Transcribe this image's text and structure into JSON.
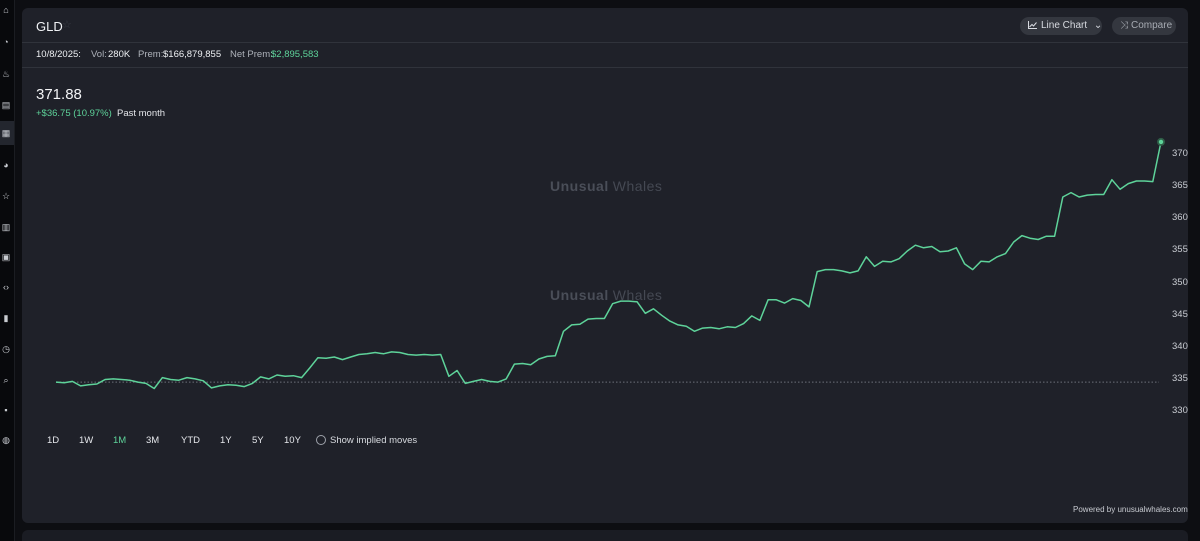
{
  "header": {
    "ticker": "GLD",
    "chart_type_label": "Line Chart",
    "compare_label": "Compare"
  },
  "stats": {
    "date": "10/8/2025:",
    "vol_label": "Vol:",
    "vol_value": "280K",
    "prem_label": "Prem:",
    "prem_value": "$166,879,855",
    "net_prem_label": "Net Prem:",
    "net_prem_value": "$2,895,583"
  },
  "quote": {
    "price": "371.88",
    "change": "+$36.75 (10.97%)",
    "period": "Past month"
  },
  "watermark": {
    "word1": "Unusual",
    "word2": "Whales"
  },
  "ranges": [
    {
      "label": "1D",
      "active": false
    },
    {
      "label": "1W",
      "active": false
    },
    {
      "label": "1M",
      "active": true
    },
    {
      "label": "3M",
      "active": false
    },
    {
      "label": "YTD",
      "active": false
    },
    {
      "label": "1Y",
      "active": false
    },
    {
      "label": "5Y",
      "active": false
    },
    {
      "label": "10Y",
      "active": false
    }
  ],
  "implied_moves_label": "Show implied moves",
  "footer": {
    "powered_by": "Powered by unusualwhales.com"
  },
  "colors": {
    "line": "#5ed39a",
    "background": "#1f2129",
    "baseline": "#6c707a"
  },
  "icons": [
    "home-icon",
    "chart-icon",
    "flame-icon",
    "calendar-icon",
    "grid-icon",
    "pie-icon",
    "star-icon",
    "bar-icon",
    "plus-icon",
    "code-icon",
    "book-icon",
    "clock-icon",
    "search-icon",
    "flag-icon",
    "alert-icon"
  ],
  "chart_data": {
    "type": "line",
    "ylim": [
      328,
      373
    ],
    "yticks": [
      330,
      335,
      340,
      345,
      350,
      355,
      360,
      365,
      370
    ],
    "baseline": 334.5,
    "grid": false,
    "series": [
      {
        "values": [
          334.5,
          334.4,
          334.6,
          333.9,
          334.1,
          334.2,
          334.9,
          335.0,
          334.9,
          334.8,
          334.5,
          334.3,
          333.5,
          335.2,
          334.9,
          334.8,
          335.2,
          335.0,
          334.7,
          333.6,
          333.9,
          334.1,
          334.0,
          333.8,
          334.3,
          335.3,
          335.0,
          335.6,
          335.4,
          335.5,
          335.2,
          336.7,
          338.3,
          338.2,
          338.4,
          338.0,
          338.4,
          338.8,
          338.9,
          339.1,
          338.9,
          339.2,
          339.1,
          338.8,
          338.7,
          338.8,
          338.7,
          338.8,
          335.4,
          336.3,
          334.3,
          334.6,
          334.9,
          334.6,
          334.5,
          335.0,
          337.3,
          337.4,
          337.2,
          338.1,
          338.5,
          338.6,
          342.4,
          343.4,
          343.5,
          344.3,
          344.4,
          344.4,
          346.7,
          347.1,
          347.1,
          347.0,
          345.2,
          345.9,
          344.9,
          344.0,
          343.4,
          343.2,
          342.4,
          342.9,
          343.0,
          342.8,
          343.1,
          343.0,
          343.6,
          344.8,
          344.1,
          347.3,
          347.3,
          346.8,
          347.5,
          347.2,
          346.2,
          351.7,
          352.0,
          352.0,
          351.8,
          351.5,
          351.8,
          354.0,
          352.5,
          353.3,
          353.2,
          353.7,
          354.9,
          355.8,
          355.4,
          355.6,
          354.8,
          354.9,
          355.4,
          352.9,
          352.0,
          353.3,
          353.2,
          354.0,
          354.5,
          356.3,
          357.3,
          356.9,
          356.7,
          357.2,
          357.2,
          363.3,
          364.0,
          363.3,
          363.6,
          363.7,
          363.7,
          366.0,
          364.5,
          365.4,
          365.8,
          365.8,
          365.7,
          371.88
        ]
      }
    ]
  }
}
